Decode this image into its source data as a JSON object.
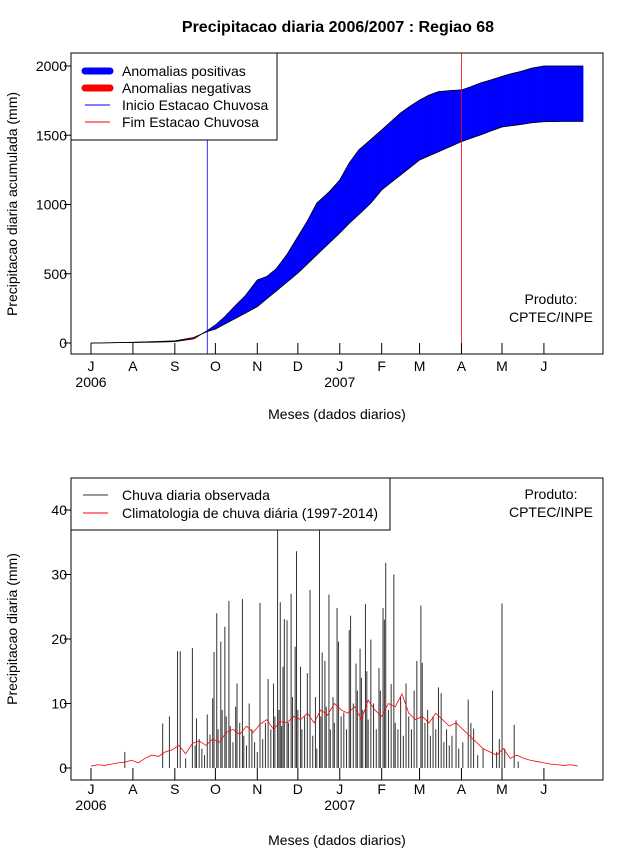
{
  "title": "Precipitacao diaria 2006/2007 : Regiao 68",
  "colors": {
    "positive": "#0000FF",
    "negative": "#FF0000",
    "inicio": "#0000FF",
    "fim": "#FF0000",
    "observed": "#333333",
    "climatology": "#FF0000"
  },
  "month_ticks": [
    {
      "label": "J",
      "day": 0
    },
    {
      "label": "A",
      "day": 31
    },
    {
      "label": "S",
      "day": 62
    },
    {
      "label": "O",
      "day": 92
    },
    {
      "label": "N",
      "day": 123
    },
    {
      "label": "D",
      "day": 153
    },
    {
      "label": "J",
      "day": 184
    },
    {
      "label": "F",
      "day": 215
    },
    {
      "label": "M",
      "day": 243
    },
    {
      "label": "A",
      "day": 274
    },
    {
      "label": "M",
      "day": 304
    },
    {
      "label": "J",
      "day": 335
    }
  ],
  "years": [
    {
      "label": "2006",
      "day": 0
    },
    {
      "label": "2007",
      "day": 184
    }
  ],
  "produto": {
    "line1": "Produto:",
    "line2": "CPTEC/INPE"
  },
  "chart_data": [
    {
      "type": "area",
      "title": "Precipitacao diaria 2006/2007 : Regiao 68",
      "xlabel": "Meses (dados diarios)",
      "ylabel": "Precipitacao diaria acumulada (mm)",
      "ylim": [
        0,
        2000
      ],
      "yticks": [
        "0",
        "500",
        "1000",
        "1500",
        "2000"
      ],
      "xlim_days": [
        0,
        364
      ],
      "legend": {
        "placement": "top-left",
        "items": [
          "Anomalias positivas",
          "Anomalias negativas",
          "Inicio Estacao Chuvosa",
          "Fim Estacao Chuvosa"
        ]
      },
      "inicio_day": 86,
      "fim_day": 274,
      "days": [
        0,
        15,
        31,
        46,
        62,
        76,
        86,
        92,
        99,
        106,
        114,
        123,
        130,
        137,
        145,
        153,
        160,
        167,
        176,
        184,
        191,
        198,
        207,
        215,
        222,
        229,
        236,
        243,
        250,
        257,
        265,
        274,
        281,
        288,
        296,
        304,
        311,
        318,
        326,
        335,
        350,
        364
      ],
      "observed_cumulative": [
        0,
        2,
        4,
        6,
        10,
        30,
        90,
        130,
        190,
        262,
        340,
        455,
        480,
        536,
        640,
        768,
        880,
        1010,
        1090,
        1177,
        1300,
        1393,
        1470,
        1538,
        1600,
        1661,
        1710,
        1754,
        1790,
        1815,
        1822,
        1827,
        1850,
        1877,
        1900,
        1925,
        1945,
        1961,
        1985,
        2000,
        2000,
        2000
      ],
      "climatology_cumulative": [
        0,
        2,
        5,
        10,
        15,
        40,
        83,
        100,
        137,
        173,
        215,
        262,
        319,
        375,
        440,
        505,
        570,
        636,
        720,
        794,
        864,
        926,
        1010,
        1105,
        1159,
        1213,
        1267,
        1321,
        1351,
        1381,
        1415,
        1454,
        1478,
        1502,
        1532,
        1560,
        1569,
        1578,
        1590,
        1598,
        1600,
        1600
      ]
    },
    {
      "type": "bar",
      "xlabel": "Meses (dados diarios)",
      "ylabel": "Precipitacao diaria (mm)",
      "ylim": [
        0,
        45
      ],
      "yticks": [
        "0",
        "10",
        "20",
        "30",
        "40"
      ],
      "legend": {
        "placement": "top-left",
        "items": [
          "Chuva diaria observada",
          "Climatologia de chuva diária (1997-2014)"
        ]
      },
      "observed_daily": [
        [
          25,
          2.5
        ],
        [
          53,
          6.9
        ],
        [
          58,
          8.0
        ],
        [
          64,
          18.1
        ],
        [
          66,
          18.1
        ],
        [
          70,
          1.5
        ],
        [
          75,
          18.6
        ],
        [
          77,
          3.5
        ],
        [
          78,
          7.7
        ],
        [
          80,
          4.5
        ],
        [
          82,
          3.0
        ],
        [
          84,
          2.0
        ],
        [
          86,
          8.3
        ],
        [
          88,
          5.2
        ],
        [
          90,
          10.8
        ],
        [
          91,
          18.0
        ],
        [
          93,
          24.0
        ],
        [
          94,
          6.0
        ],
        [
          96,
          19.6
        ],
        [
          97,
          9.0
        ],
        [
          99,
          21.9
        ],
        [
          100,
          8.0
        ],
        [
          102,
          25.9
        ],
        [
          103,
          6.5
        ],
        [
          105,
          4.0
        ],
        [
          107,
          9.5
        ],
        [
          108,
          13.1
        ],
        [
          110,
          7.0
        ],
        [
          112,
          26.2
        ],
        [
          113,
          5.0
        ],
        [
          115,
          3.5
        ],
        [
          117,
          10.0
        ],
        [
          119,
          6.0
        ],
        [
          121,
          4.0
        ],
        [
          123,
          2.5
        ],
        [
          125,
          25.6
        ],
        [
          127,
          4.5
        ],
        [
          129,
          7.0
        ],
        [
          131,
          13.8
        ],
        [
          133,
          6.0
        ],
        [
          135,
          13.1
        ],
        [
          136,
          8.0
        ],
        [
          138,
          44
        ],
        [
          139,
          9.0
        ],
        [
          140,
          25.7
        ],
        [
          141,
          6.5
        ],
        [
          142,
          15.7
        ],
        [
          143,
          23.1
        ],
        [
          145,
          22.9
        ],
        [
          146,
          7.0
        ],
        [
          148,
          27.0
        ],
        [
          149,
          11.0
        ],
        [
          151,
          18.8
        ],
        [
          152,
          33.6
        ],
        [
          153,
          9.0
        ],
        [
          155,
          15.7
        ],
        [
          156,
          6.0
        ],
        [
          158,
          8.0
        ],
        [
          160,
          14.7
        ],
        [
          162,
          27.6
        ],
        [
          164,
          5.0
        ],
        [
          166,
          11.0
        ],
        [
          167,
          3.0
        ],
        [
          169,
          44
        ],
        [
          170,
          8.0
        ],
        [
          171,
          17.9
        ],
        [
          173,
          16.6
        ],
        [
          174,
          9.5
        ],
        [
          176,
          26.9
        ],
        [
          177,
          6.0
        ],
        [
          179,
          11.0
        ],
        [
          180,
          7.0
        ],
        [
          182,
          24.8
        ],
        [
          183,
          19.6
        ],
        [
          185,
          8.0
        ],
        [
          187,
          8.6
        ],
        [
          189,
          6.0
        ],
        [
          191,
          21.4
        ],
        [
          192,
          23.6
        ],
        [
          194,
          10.0
        ],
        [
          196,
          16.2
        ],
        [
          197,
          12.0
        ],
        [
          199,
          18.5
        ],
        [
          200,
          14.0
        ],
        [
          201,
          9.0
        ],
        [
          203,
          25.4
        ],
        [
          204,
          15.0
        ],
        [
          205,
          7.5
        ],
        [
          207,
          19.9
        ],
        [
          209,
          10.0
        ],
        [
          211,
          6.0
        ],
        [
          213,
          15.5
        ],
        [
          214,
          12.0
        ],
        [
          216,
          24.8
        ],
        [
          217,
          23.0
        ],
        [
          218,
          31.8
        ],
        [
          220,
          9.0
        ],
        [
          222,
          13.0
        ],
        [
          224,
          30.0
        ],
        [
          225,
          7.0
        ],
        [
          227,
          6.0
        ],
        [
          229,
          11.0
        ],
        [
          231,
          5.0
        ],
        [
          233,
          13.1
        ],
        [
          235,
          8.0
        ],
        [
          237,
          6.0
        ],
        [
          239,
          12.0
        ],
        [
          241,
          16.6
        ],
        [
          244,
          25.2
        ],
        [
          245,
          16.3
        ],
        [
          247,
          7.0
        ],
        [
          249,
          9.0
        ],
        [
          251,
          5.0
        ],
        [
          253,
          8.0
        ],
        [
          255,
          6.0
        ],
        [
          257,
          12.5
        ],
        [
          259,
          11.6
        ],
        [
          261,
          4.0
        ],
        [
          263,
          6.0
        ],
        [
          265,
          3.5
        ],
        [
          267,
          5.0
        ],
        [
          270,
          7.4
        ],
        [
          272,
          3.0
        ],
        [
          275,
          4.0
        ],
        [
          279,
          10.6
        ],
        [
          281,
          7.0
        ],
        [
          283,
          6.1
        ],
        [
          286,
          2.0
        ],
        [
          290,
          3.0
        ],
        [
          297,
          12.0
        ],
        [
          300,
          2.5
        ],
        [
          302,
          4.5
        ],
        [
          304,
          25.5
        ],
        [
          306,
          3.0
        ],
        [
          313,
          6.7
        ],
        [
          316,
          1.0
        ]
      ],
      "climatology_daily_step_days": 5,
      "climatology_daily": [
        0.3,
        0.5,
        0.4,
        0.6,
        0.8,
        0.9,
        1.2,
        0.8,
        1.5,
        2.0,
        1.8,
        2.5,
        2.8,
        3.5,
        2.2,
        3.8,
        4.2,
        3.5,
        4.5,
        4.0,
        5.5,
        6.0,
        5.2,
        6.5,
        5.5,
        6.8,
        7.5,
        6.0,
        7.2,
        7.0,
        8.0,
        7.5,
        8.5,
        7.0,
        9.0,
        8.2,
        10.0,
        9.0,
        8.5,
        9.5,
        7.5,
        10.5,
        9.0,
        8.0,
        10.0,
        9.5,
        11.5,
        8.5,
        7.5,
        8.0,
        7.0,
        8.5,
        7.5,
        6.5,
        7.0,
        6.0,
        5.0,
        4.0,
        3.0,
        2.5,
        2.0,
        3.0,
        1.5,
        2.0,
        1.5,
        1.2,
        1.0,
        0.8,
        0.6,
        0.5,
        0.4,
        0.5,
        0.3
      ]
    }
  ]
}
